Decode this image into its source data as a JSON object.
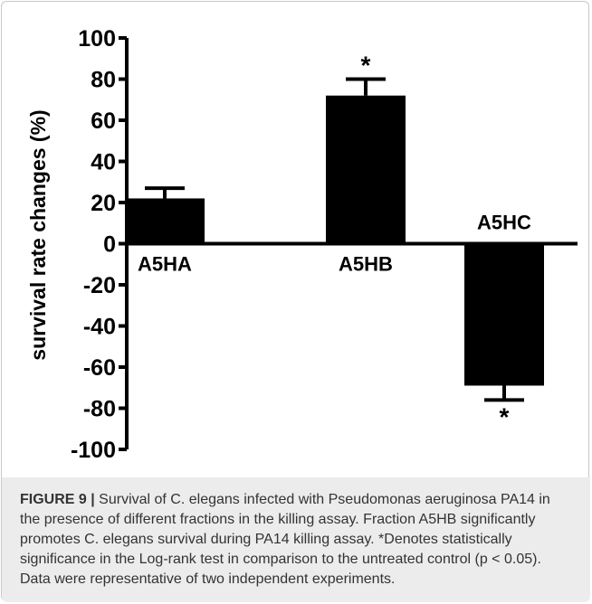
{
  "chart_data": {
    "type": "bar",
    "categories": [
      "A5HA",
      "A5HB",
      "A5HC"
    ],
    "values": [
      22,
      72,
      -69
    ],
    "errors": [
      5,
      8,
      7
    ],
    "significant": [
      false,
      true,
      true
    ],
    "significance_marker": "*",
    "ylabel": "survival rate changes (%)",
    "ylim": [
      -100,
      100
    ],
    "yticks": [
      "100",
      "80",
      "60",
      "40",
      "20",
      "0",
      "-20",
      "-40",
      "-60",
      "-80",
      "-100"
    ],
    "grid": false,
    "colors": {
      "bar": "#000000",
      "axis": "#000000"
    }
  },
  "caption": {
    "label": "FIGURE 9 |",
    "text": " Survival of C. elegans infected with Pseudomonas aeruginosa PA14 in the presence of different fractions in the killing assay. Fraction A5HB significantly promotes C. elegans survival during PA14 killing assay. *Denotes statistically significance in the Log-rank test in comparison to the untreated control (p < 0.05). Data were representative of two independent experiments."
  }
}
